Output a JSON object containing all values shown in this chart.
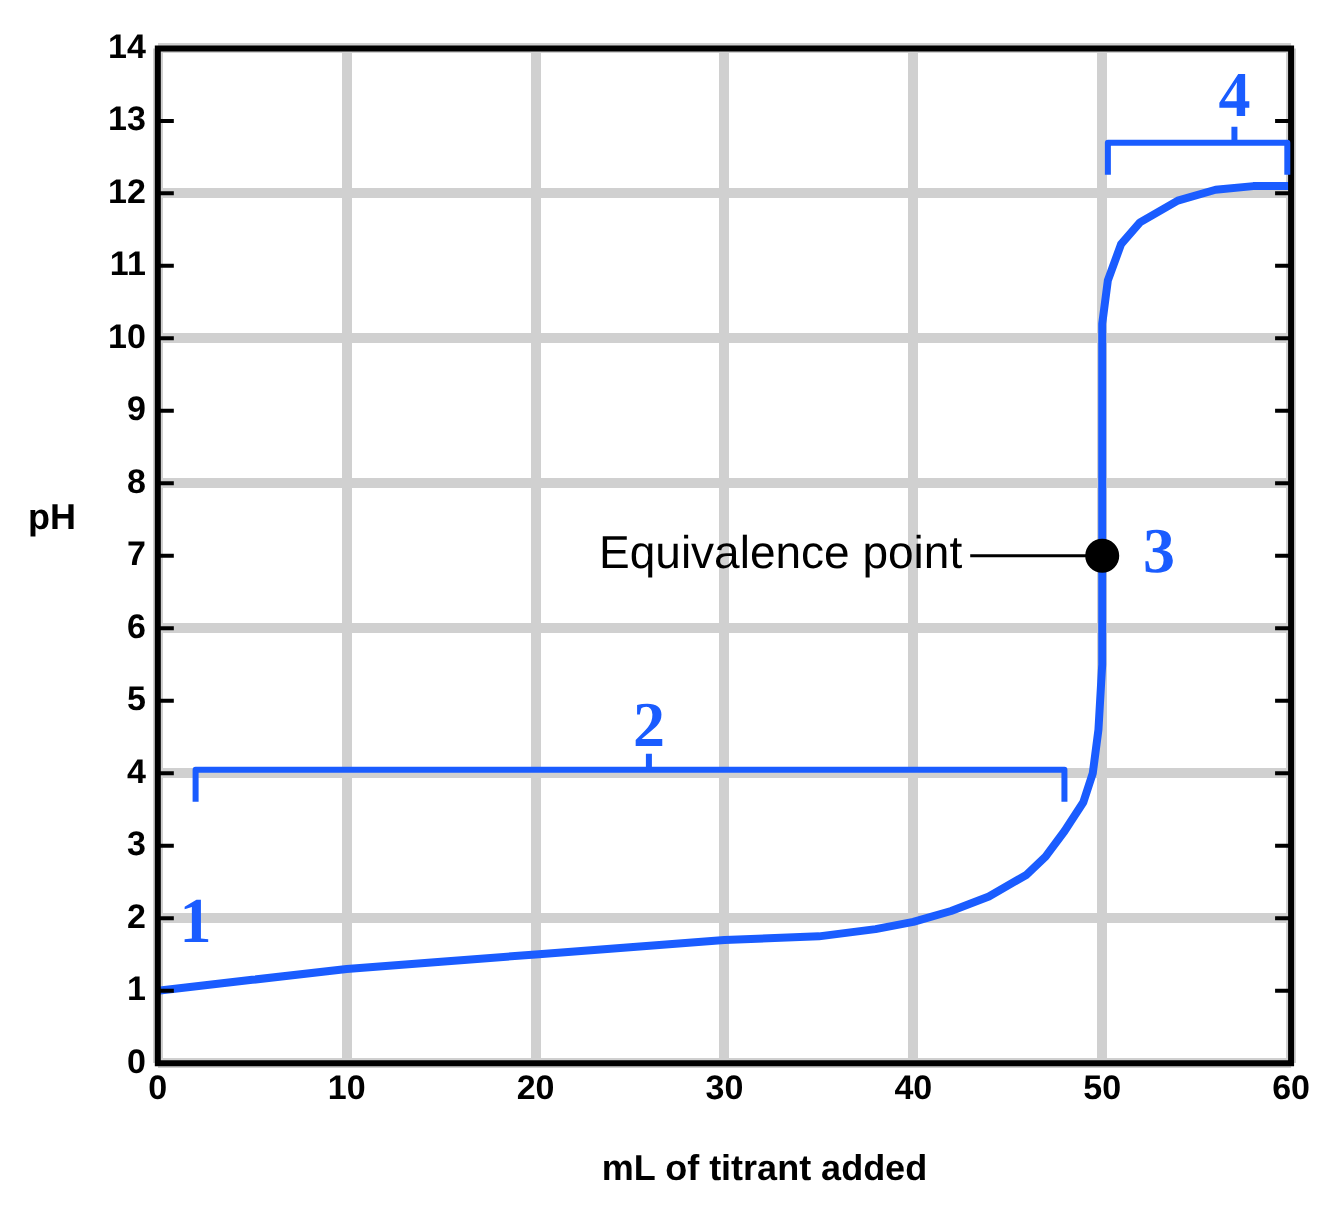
{
  "chart_data": {
    "type": "line",
    "xlabel": "mL of titrant added",
    "ylabel": "pH",
    "xlim": [
      0,
      60
    ],
    "xticks": [
      0,
      10,
      20,
      30,
      40,
      50,
      60
    ],
    "ylim": [
      0,
      14
    ],
    "yticks": [
      0,
      1,
      2,
      3,
      4,
      5,
      6,
      7,
      8,
      9,
      10,
      11,
      12,
      13,
      14
    ],
    "grid": true,
    "legend": false,
    "marker": "none",
    "line_style": "solid",
    "series": [
      {
        "color": "#1a5cff",
        "x": [
          0,
          5,
          10,
          15,
          20,
          25,
          30,
          35,
          38,
          40,
          42,
          44,
          46,
          47,
          48,
          49,
          49.5,
          49.8,
          50,
          50,
          50.3,
          51,
          52,
          54,
          56,
          58,
          60
        ],
        "values": [
          1.0,
          1.15,
          1.3,
          1.4,
          1.5,
          1.6,
          1.7,
          1.75,
          1.85,
          1.95,
          2.1,
          2.3,
          2.6,
          2.85,
          3.2,
          3.6,
          4.0,
          4.6,
          5.5,
          10.2,
          10.8,
          11.3,
          11.6,
          11.9,
          12.05,
          12.1,
          12.1
        ]
      },
      {
        "type": "scatter",
        "color": "#000000",
        "marker": "circle",
        "x": [
          50
        ],
        "values": [
          7
        ]
      }
    ],
    "annotations": [
      "1",
      "2",
      "Equivalence point",
      "3",
      "4"
    ]
  }
}
